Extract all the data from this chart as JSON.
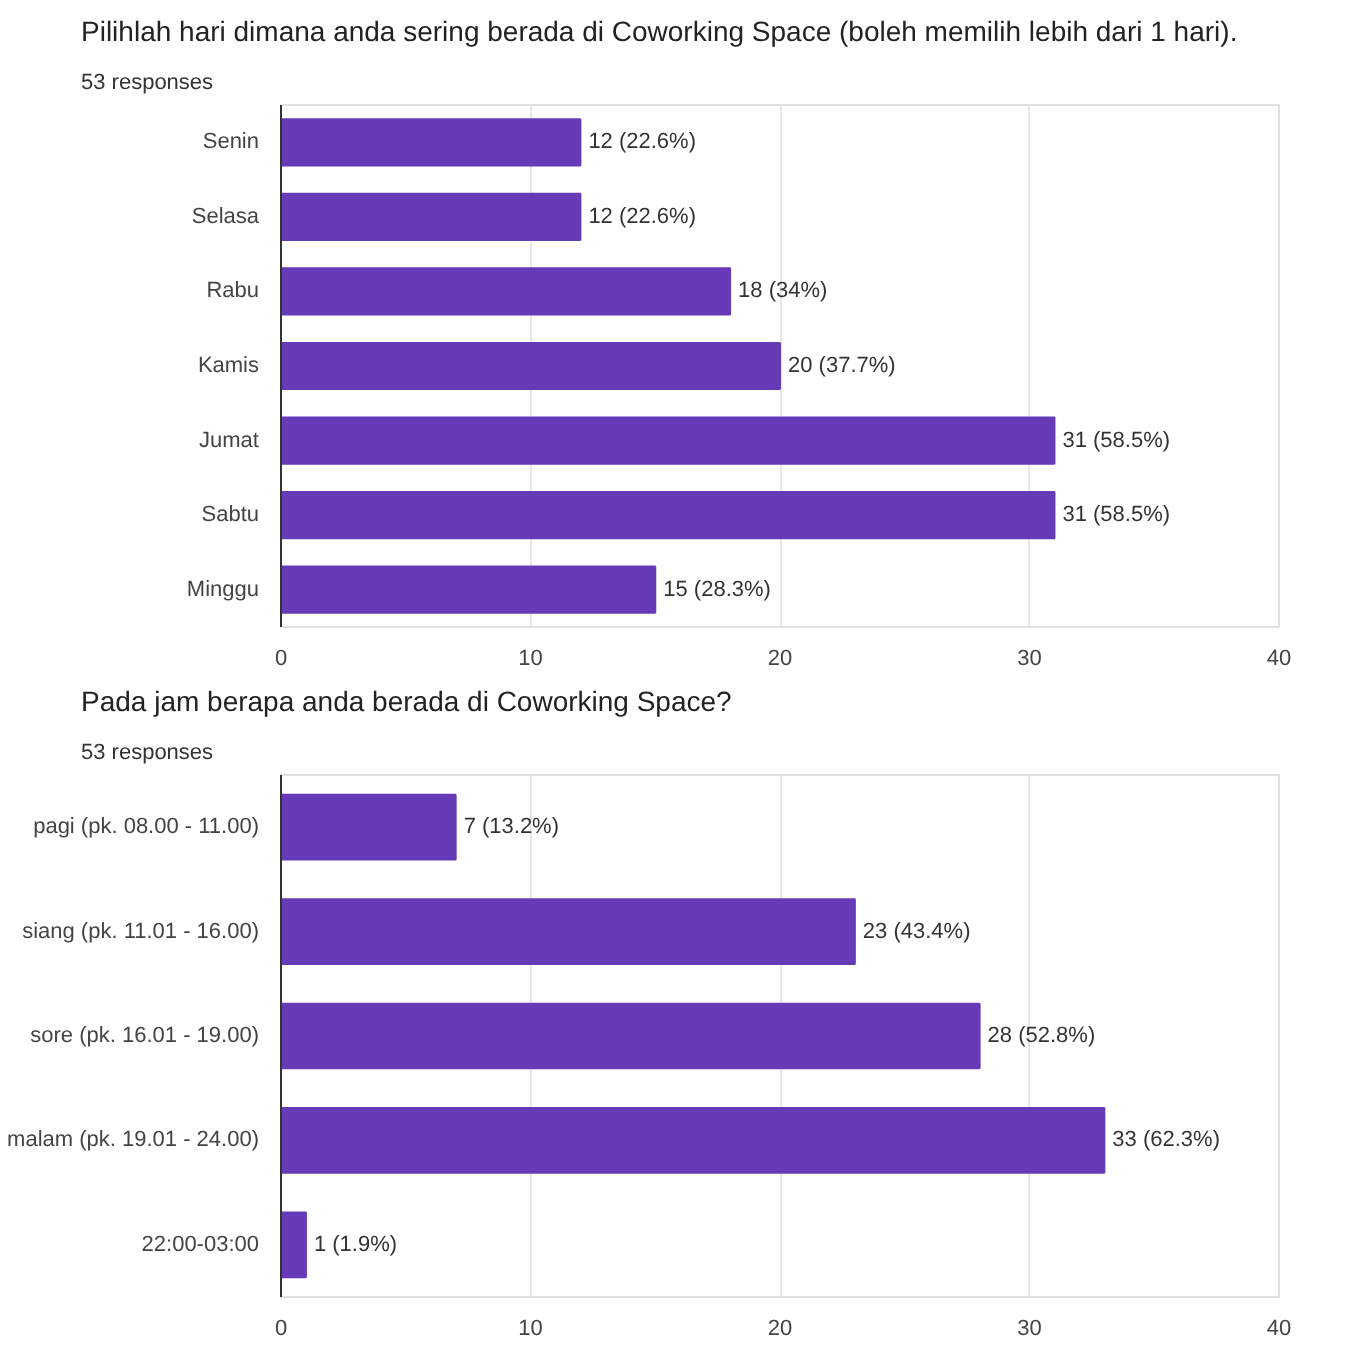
{
  "chart_data": [
    {
      "type": "bar",
      "orientation": "horizontal",
      "title": "Pilihlah hari dimana anda sering berada di Coworking Space (boleh memilih lebih dari 1 hari).",
      "subtitle": "53 responses",
      "categories": [
        "Senin",
        "Selasa",
        "Rabu",
        "Kamis",
        "Jumat",
        "Sabtu",
        "Minggu"
      ],
      "values": [
        12,
        12,
        18,
        20,
        31,
        31,
        15
      ],
      "value_labels": [
        "12 (22.6%)",
        "12 (22.6%)",
        "18 (34%)",
        "20 (37.7%)",
        "31 (58.5%)",
        "31 (58.5%)",
        "15 (28.3%)"
      ],
      "color": "#673ab7",
      "xlim": [
        0,
        40
      ],
      "xticks": [
        0,
        10,
        20,
        30,
        40
      ],
      "grid": "x"
    },
    {
      "type": "bar",
      "orientation": "horizontal",
      "title": "Pada jam berapa anda berada di Coworking Space?",
      "subtitle": "53 responses",
      "categories": [
        "pagi (pk. 08.00 - 11.00)",
        "siang (pk. 11.01 - 16.00)",
        "sore (pk. 16.01 - 19.00)",
        "malam (pk. 19.01 - 24.00)",
        "22:00-03:00"
      ],
      "values": [
        7,
        23,
        28,
        33,
        1
      ],
      "value_labels": [
        "7 (13.2%)",
        "23 (43.4%)",
        "28 (52.8%)",
        "33 (62.3%)",
        "1 (1.9%)"
      ],
      "color": "#673ab7",
      "xlim": [
        0,
        40
      ],
      "xticks": [
        0,
        10,
        20,
        30,
        40
      ],
      "grid": "x"
    }
  ]
}
